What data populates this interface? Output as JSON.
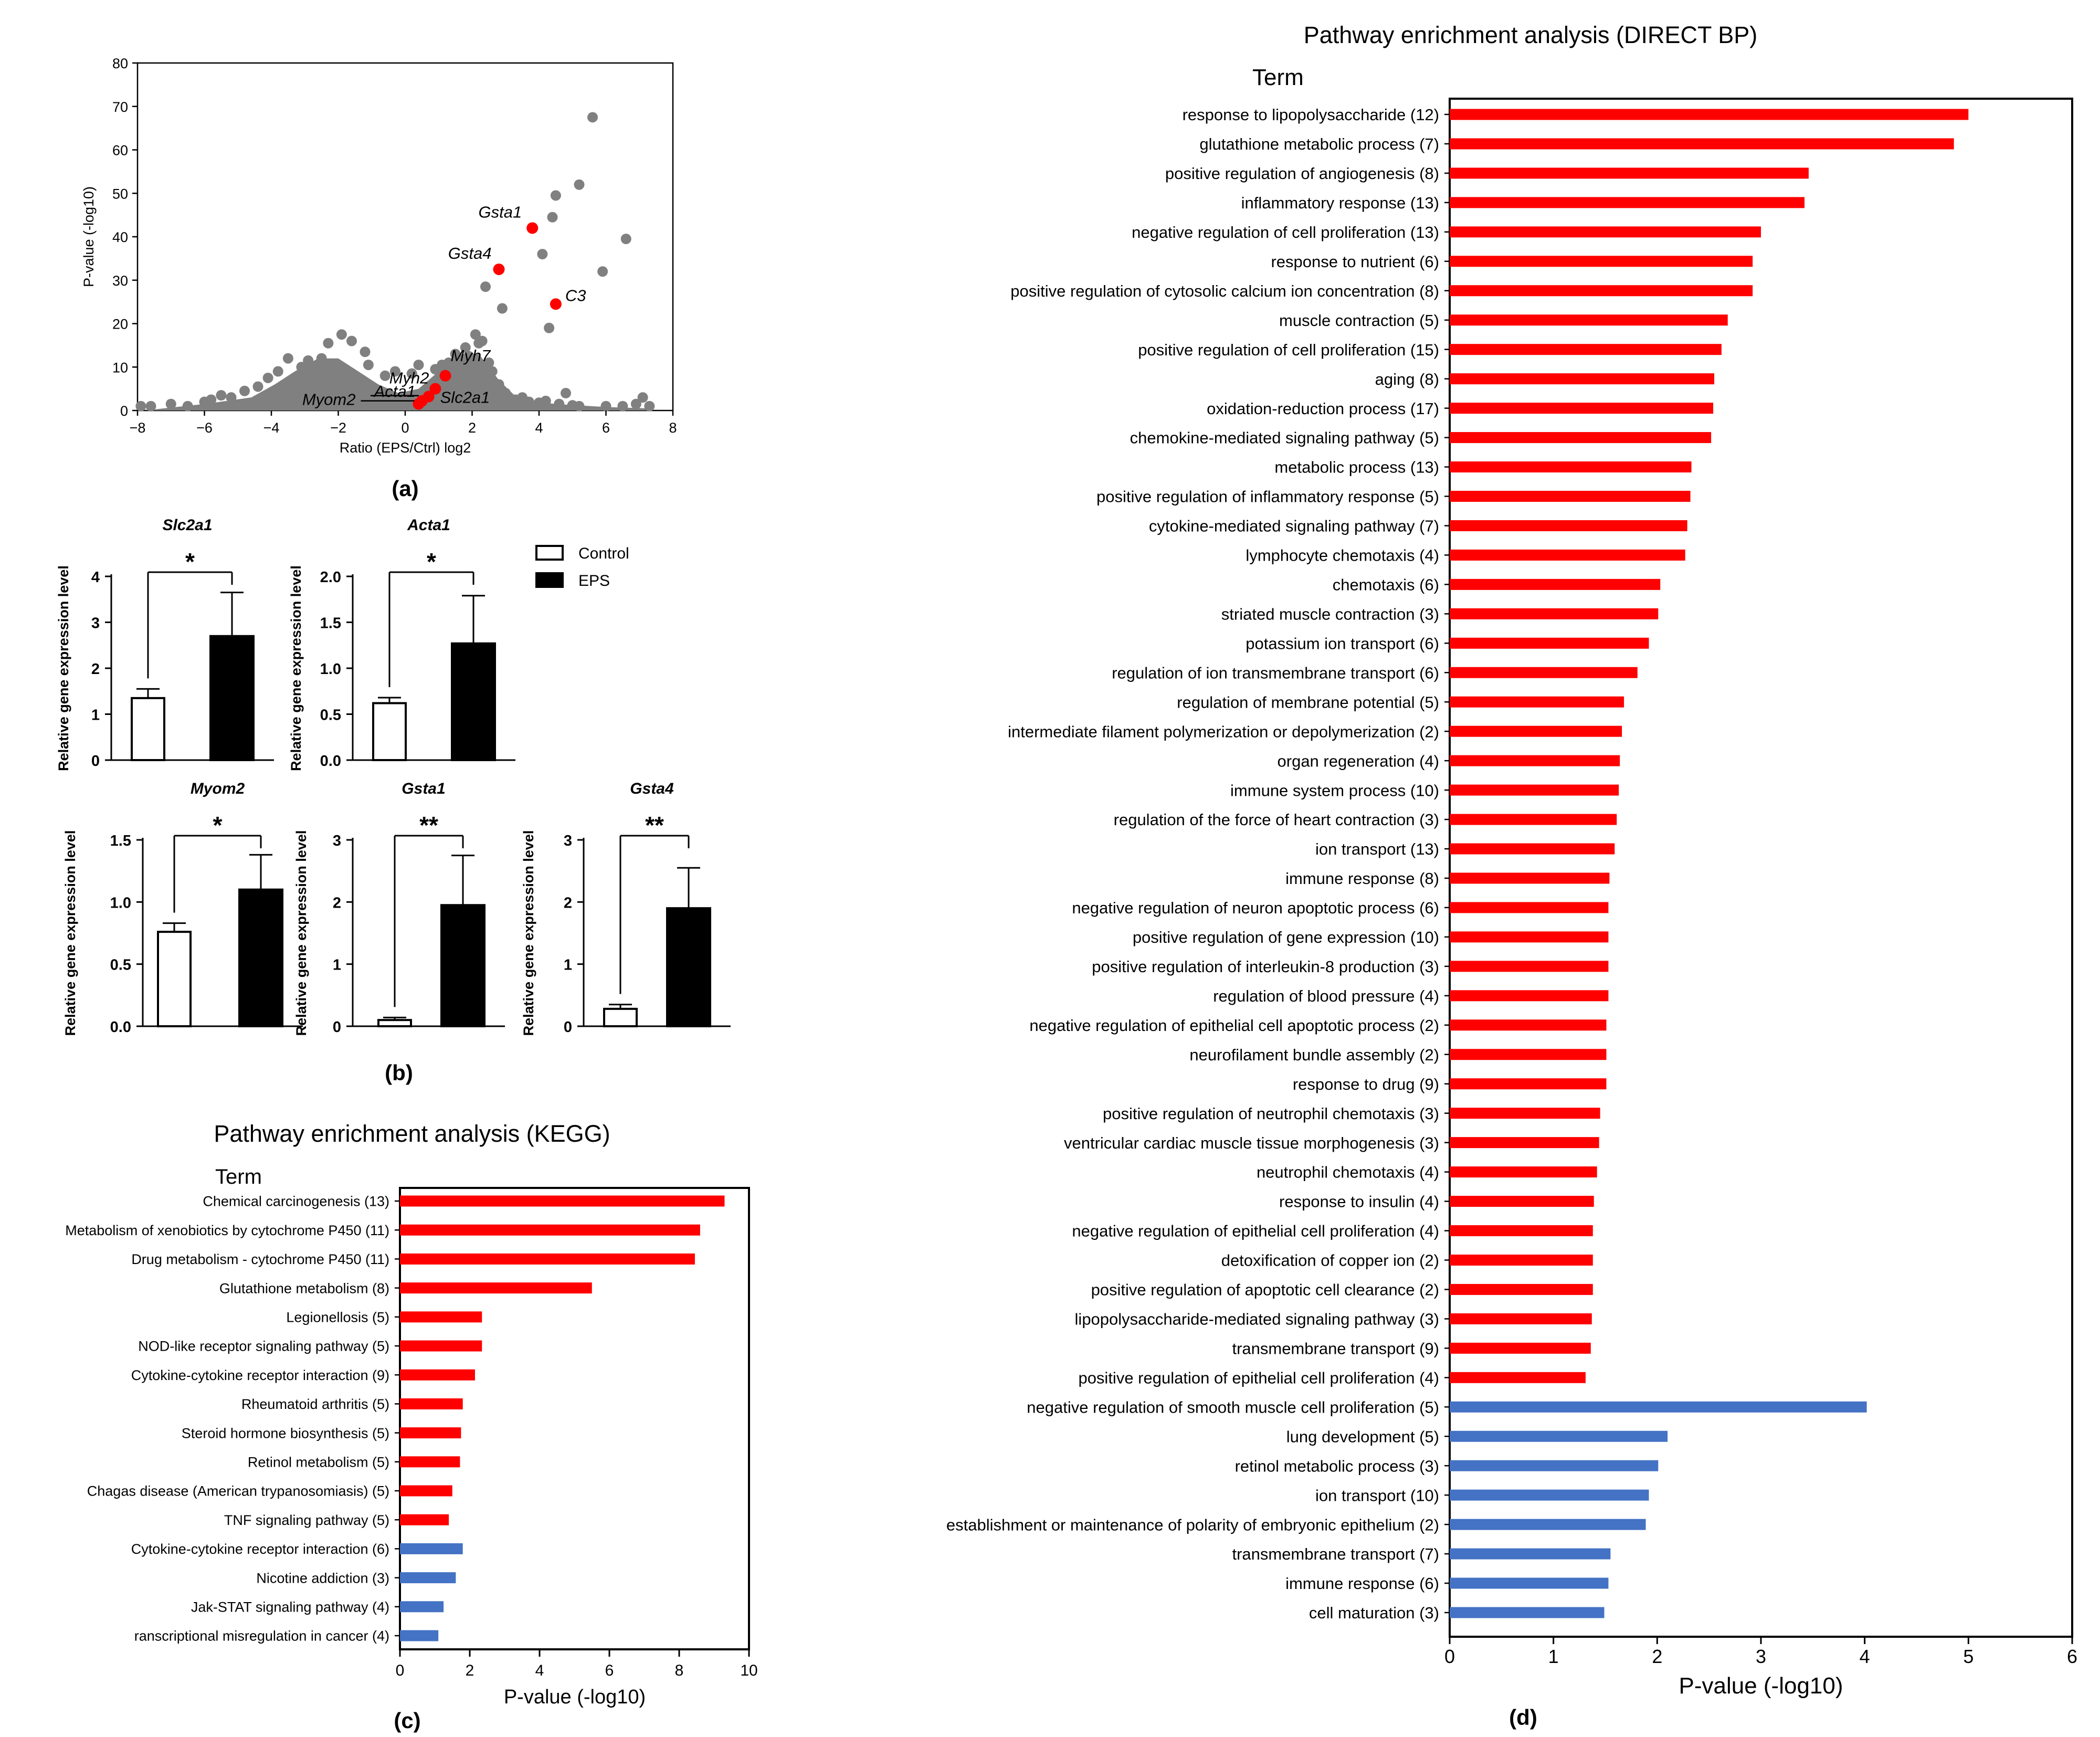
{
  "colors": {
    "up": "#ff0000",
    "down": "#4472c4",
    "gray": "#808080",
    "hl": "#ff0000"
  },
  "chart_data": [
    {
      "id": "a",
      "type": "scatter",
      "panel_label": "(a)",
      "xlabel": "Ratio (EPS/Ctrl) log2",
      "ylabel": "P-value (-log10)",
      "xlim": [
        -8,
        8
      ],
      "ylim": [
        0,
        80
      ],
      "xticks": [
        "−8",
        "−6",
        "−4",
        "−2",
        "0",
        "2",
        "4",
        "6",
        "8"
      ],
      "yticks": [
        "0",
        "10",
        "20",
        "30",
        "40",
        "50",
        "60",
        "70",
        "80"
      ],
      "highlighted": [
        {
          "name": "Gsta1",
          "x": 3.8,
          "y": 42
        },
        {
          "name": "Gsta4",
          "x": 2.8,
          "y": 32.5
        },
        {
          "name": "C3",
          "x": 4.5,
          "y": 24.5
        },
        {
          "name": "Myh7",
          "x": 1.2,
          "y": 8
        },
        {
          "name": "Myh2",
          "x": 0.9,
          "y": 5
        },
        {
          "name": "Slc2a1",
          "x": 0.7,
          "y": 3.2
        },
        {
          "name": "Acta1",
          "x": 0.5,
          "y": 2.2
        },
        {
          "name": "Myom2",
          "x": 0.4,
          "y": 1.5
        }
      ],
      "points": [
        [
          5.6,
          67.5
        ],
        [
          5.2,
          52
        ],
        [
          4.5,
          49.5
        ],
        [
          4.4,
          44.5
        ],
        [
          6.6,
          39.5
        ],
        [
          4.1,
          36
        ],
        [
          5.9,
          32
        ],
        [
          2.4,
          28.5
        ],
        [
          2.9,
          23.5
        ],
        [
          4.3,
          19
        ],
        [
          2.1,
          17.5
        ],
        [
          2.2,
          15.5
        ],
        [
          1.8,
          14.5
        ],
        [
          1.5,
          13
        ],
        [
          1.3,
          11
        ],
        [
          1.9,
          12.5
        ],
        [
          2.5,
          11
        ],
        [
          2.3,
          16
        ],
        [
          1.1,
          10.5
        ],
        [
          0.9,
          9.5
        ],
        [
          0.4,
          10.5
        ],
        [
          0.2,
          8.5
        ],
        [
          -0.3,
          9
        ],
        [
          -0.6,
          8
        ],
        [
          -1.1,
          10.5
        ],
        [
          -1.2,
          13.5
        ],
        [
          -1.6,
          16
        ],
        [
          -1.9,
          17.5
        ],
        [
          -2.3,
          15.5
        ],
        [
          -2.5,
          12
        ],
        [
          -2.9,
          11.5
        ],
        [
          -3.1,
          10
        ],
        [
          -3.5,
          12
        ],
        [
          -3.8,
          9
        ],
        [
          -4.1,
          7.5
        ],
        [
          -4.4,
          5.5
        ],
        [
          -4.8,
          4.5
        ],
        [
          -5.2,
          3
        ],
        [
          -5.5,
          3.5
        ],
        [
          -5.8,
          2.5
        ],
        [
          -6.0,
          2
        ],
        [
          -6.5,
          1
        ],
        [
          -7.0,
          1.5
        ],
        [
          -7.6,
          1
        ],
        [
          -7.9,
          1
        ],
        [
          3.3,
          2.5
        ],
        [
          3.5,
          3
        ],
        [
          3.7,
          2
        ],
        [
          4.0,
          1.8
        ],
        [
          4.2,
          2.2
        ],
        [
          4.6,
          1.5
        ],
        [
          4.8,
          4
        ],
        [
          5.0,
          1.2
        ],
        [
          5.2,
          1
        ],
        [
          6.0,
          1
        ],
        [
          6.5,
          1
        ],
        [
          6.9,
          1.5
        ],
        [
          7.1,
          3
        ],
        [
          7.3,
          1
        ],
        [
          2.6,
          9
        ],
        [
          2.8,
          6
        ],
        [
          3.0,
          4
        ],
        [
          -1.5,
          7.5
        ],
        [
          -2.0,
          6
        ],
        [
          -2.7,
          5.5
        ],
        [
          -3.3,
          4.5
        ],
        [
          -4.5,
          2
        ],
        [
          -3.0,
          2.5
        ],
        [
          1.6,
          7
        ],
        [
          2.0,
          8
        ]
      ]
    },
    {
      "id": "b",
      "type": "bar",
      "panel_label": "(b)",
      "legend": {
        "control": "Control",
        "eps": "EPS"
      },
      "ylabel": "Relative gene expression level",
      "subplots": [
        {
          "gene": "Slc2a1",
          "yticks": [
            "0",
            "1",
            "2",
            "3",
            "4"
          ],
          "ymax": 4,
          "values": [
            1.35,
            2.7
          ],
          "errors": [
            0.2,
            0.95
          ],
          "sig": "*"
        },
        {
          "gene": "Acta1",
          "yticks": [
            "0.0",
            "0.5",
            "1.0",
            "1.5",
            "2.0"
          ],
          "ymax": 2,
          "values": [
            0.62,
            1.27
          ],
          "errors": [
            0.06,
            0.52
          ],
          "sig": "*"
        },
        {
          "gene": "Myom2",
          "yticks": [
            "0.0",
            "0.5",
            "1.0",
            "1.5"
          ],
          "ymax": 1.5,
          "values": [
            0.76,
            1.1
          ],
          "errors": [
            0.07,
            0.28
          ],
          "sig": "*"
        },
        {
          "gene": "Gsta1",
          "yticks": [
            "0",
            "1",
            "2",
            "3"
          ],
          "ymax": 3,
          "values": [
            0.1,
            1.95
          ],
          "errors": [
            0.04,
            0.8
          ],
          "sig": "**"
        },
        {
          "gene": "Gsta4",
          "yticks": [
            "0",
            "1",
            "2",
            "3"
          ],
          "ymax": 3,
          "values": [
            0.28,
            1.9
          ],
          "errors": [
            0.07,
            0.65
          ],
          "sig": "**"
        }
      ]
    },
    {
      "id": "c",
      "type": "bar",
      "orientation": "horizontal",
      "panel_label": "(c)",
      "title": "Pathway enrichment analysis (KEGG)",
      "term_header": "Term",
      "xlabel": "P-value (-log10)",
      "xlim": [
        0,
        10
      ],
      "xticks": [
        "0",
        "2",
        "4",
        "6",
        "8",
        "10"
      ],
      "terms": [
        {
          "label": "Chemical carcinogenesis (13)",
          "value": 9.3,
          "group": "up"
        },
        {
          "label": "Metabolism of xenobiotics by cytochrome P450 (11)",
          "value": 8.6,
          "group": "up"
        },
        {
          "label": "Drug metabolism - cytochrome P450 (11)",
          "value": 8.45,
          "group": "up"
        },
        {
          "label": "Glutathione metabolism (8)",
          "value": 5.5,
          "group": "up"
        },
        {
          "label": "Legionellosis (5)",
          "value": 2.35,
          "group": "up"
        },
        {
          "label": "NOD-like receptor signaling pathway (5)",
          "value": 2.35,
          "group": "up"
        },
        {
          "label": "Cytokine-cytokine receptor interaction (9)",
          "value": 2.15,
          "group": "up"
        },
        {
          "label": "Rheumatoid arthritis (5)",
          "value": 1.8,
          "group": "up"
        },
        {
          "label": "Steroid hormone biosynthesis (5)",
          "value": 1.75,
          "group": "up"
        },
        {
          "label": "Retinol metabolism (5)",
          "value": 1.72,
          "group": "up"
        },
        {
          "label": "Chagas disease (American trypanosomiasis) (5)",
          "value": 1.5,
          "group": "up"
        },
        {
          "label": "TNF signaling pathway (5)",
          "value": 1.4,
          "group": "up"
        },
        {
          "label": "Cytokine-cytokine receptor interaction (6)",
          "value": 1.8,
          "group": "down"
        },
        {
          "label": "Nicotine addiction (3)",
          "value": 1.6,
          "group": "down"
        },
        {
          "label": "Jak-STAT signaling pathway (4)",
          "value": 1.25,
          "group": "down"
        },
        {
          "label": "ranscriptional misregulation in cancer (4)",
          "value": 1.1,
          "group": "down"
        }
      ]
    },
    {
      "id": "d",
      "type": "bar",
      "orientation": "horizontal",
      "panel_label": "(d)",
      "title": "Pathway enrichment analysis (DIRECT BP)",
      "term_header": "Term",
      "xlabel": "P-value (-log10)",
      "xlim": [
        0,
        6
      ],
      "xticks": [
        "0",
        "1",
        "2",
        "3",
        "4",
        "5",
        "6"
      ],
      "terms": [
        {
          "label": "response to lipopolysaccharide (12)",
          "value": 5.0,
          "group": "up"
        },
        {
          "label": "glutathione metabolic process (7)",
          "value": 4.86,
          "group": "up"
        },
        {
          "label": "positive regulation of angiogenesis (8)",
          "value": 3.46,
          "group": "up"
        },
        {
          "label": "inflammatory response (13)",
          "value": 3.42,
          "group": "up"
        },
        {
          "label": "negative regulation of cell proliferation (13)",
          "value": 3.0,
          "group": "up"
        },
        {
          "label": "response to nutrient (6)",
          "value": 2.92,
          "group": "up"
        },
        {
          "label": "positive regulation of cytosolic calcium ion concentration (8)",
          "value": 2.92,
          "group": "up"
        },
        {
          "label": "muscle contraction (5)",
          "value": 2.68,
          "group": "up"
        },
        {
          "label": "positive regulation of cell proliferation (15)",
          "value": 2.62,
          "group": "up"
        },
        {
          "label": "aging (8)",
          "value": 2.55,
          "group": "up"
        },
        {
          "label": "oxidation-reduction process (17)",
          "value": 2.54,
          "group": "up"
        },
        {
          "label": "chemokine-mediated signaling pathway (5)",
          "value": 2.52,
          "group": "up"
        },
        {
          "label": "metabolic process (13)",
          "value": 2.33,
          "group": "up"
        },
        {
          "label": "positive regulation of inflammatory response (5)",
          "value": 2.32,
          "group": "up"
        },
        {
          "label": "cytokine-mediated signaling pathway (7)",
          "value": 2.29,
          "group": "up"
        },
        {
          "label": "lymphocyte chemotaxis (4)",
          "value": 2.27,
          "group": "up"
        },
        {
          "label": "chemotaxis (6)",
          "value": 2.03,
          "group": "up"
        },
        {
          "label": "striated muscle contraction (3)",
          "value": 2.01,
          "group": "up"
        },
        {
          "label": "potassium ion transport (6)",
          "value": 1.92,
          "group": "up"
        },
        {
          "label": "regulation of ion transmembrane transport (6)",
          "value": 1.81,
          "group": "up"
        },
        {
          "label": "regulation of membrane potential (5)",
          "value": 1.68,
          "group": "up"
        },
        {
          "label": "intermediate filament polymerization or depolymerization (2)",
          "value": 1.66,
          "group": "up"
        },
        {
          "label": "organ regeneration (4)",
          "value": 1.64,
          "group": "up"
        },
        {
          "label": "immune system process (10)",
          "value": 1.63,
          "group": "up"
        },
        {
          "label": "regulation of the force of heart contraction (3)",
          "value": 1.61,
          "group": "up"
        },
        {
          "label": "ion transport (13)",
          "value": 1.59,
          "group": "up"
        },
        {
          "label": "immune response (8)",
          "value": 1.54,
          "group": "up"
        },
        {
          "label": "negative regulation of neuron apoptotic process (6)",
          "value": 1.53,
          "group": "up"
        },
        {
          "label": "positive regulation of gene expression (10)",
          "value": 1.53,
          "group": "up"
        },
        {
          "label": "positive regulation of interleukin-8 production (3)",
          "value": 1.53,
          "group": "up"
        },
        {
          "label": "regulation of blood pressure (4)",
          "value": 1.53,
          "group": "up"
        },
        {
          "label": "negative regulation of epithelial cell apoptotic process (2)",
          "value": 1.51,
          "group": "up"
        },
        {
          "label": "neurofilament bundle assembly (2)",
          "value": 1.51,
          "group": "up"
        },
        {
          "label": "response to drug (9)",
          "value": 1.51,
          "group": "up"
        },
        {
          "label": "positive regulation of neutrophil chemotaxis (3)",
          "value": 1.45,
          "group": "up"
        },
        {
          "label": "ventricular cardiac muscle tissue morphogenesis (3)",
          "value": 1.44,
          "group": "up"
        },
        {
          "label": "neutrophil chemotaxis (4)",
          "value": 1.42,
          "group": "up"
        },
        {
          "label": "response to insulin (4)",
          "value": 1.39,
          "group": "up"
        },
        {
          "label": "negative regulation of epithelial cell proliferation (4)",
          "value": 1.38,
          "group": "up"
        },
        {
          "label": "detoxification of copper ion (2)",
          "value": 1.38,
          "group": "up"
        },
        {
          "label": "positive regulation of apoptotic cell clearance (2)",
          "value": 1.38,
          "group": "up"
        },
        {
          "label": "lipopolysaccharide-mediated signaling pathway (3)",
          "value": 1.37,
          "group": "up"
        },
        {
          "label": "transmembrane transport (9)",
          "value": 1.36,
          "group": "up"
        },
        {
          "label": "positive regulation of epithelial cell proliferation (4)",
          "value": 1.31,
          "group": "up"
        },
        {
          "label": "negative regulation of smooth muscle cell proliferation (5)",
          "value": 4.02,
          "group": "down"
        },
        {
          "label": "lung development (5)",
          "value": 2.1,
          "group": "down"
        },
        {
          "label": "retinol metabolic process (3)",
          "value": 2.01,
          "group": "down"
        },
        {
          "label": "ion transport (10)",
          "value": 1.92,
          "group": "down"
        },
        {
          "label": "establishment or maintenance of polarity of embryonic epithelium (2)",
          "value": 1.89,
          "group": "down"
        },
        {
          "label": "transmembrane transport (7)",
          "value": 1.55,
          "group": "down"
        },
        {
          "label": "immune response (6)",
          "value": 1.53,
          "group": "down"
        },
        {
          "label": "cell maturation (3)",
          "value": 1.49,
          "group": "down"
        }
      ]
    }
  ]
}
